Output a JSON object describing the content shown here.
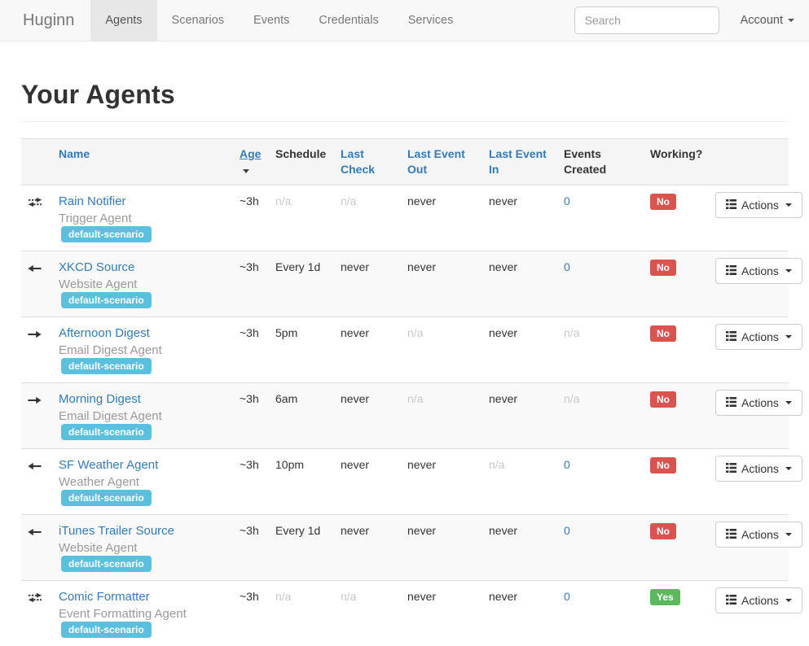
{
  "navbar": {
    "brand": "Huginn",
    "items": [
      {
        "label": "Agents",
        "active": true
      },
      {
        "label": "Scenarios",
        "active": false
      },
      {
        "label": "Events",
        "active": false
      },
      {
        "label": "Credentials",
        "active": false
      },
      {
        "label": "Services",
        "active": false
      }
    ],
    "search_placeholder": "Search",
    "account_label": "Account"
  },
  "page": {
    "title": "Your Agents"
  },
  "table": {
    "headers": [
      {
        "label": "",
        "style": "plain"
      },
      {
        "label": "Name",
        "style": "link"
      },
      {
        "label": "Age",
        "style": "link",
        "sorted": "desc"
      },
      {
        "label": "Schedule",
        "style": "plain"
      },
      {
        "label": "Last Check",
        "style": "link"
      },
      {
        "label": "Last Event Out",
        "style": "link"
      },
      {
        "label": "Last Event In",
        "style": "link"
      },
      {
        "label": "Events Created",
        "style": "plain"
      },
      {
        "label": "Working?",
        "style": "plain"
      },
      {
        "label": "",
        "style": "plain"
      }
    ],
    "actions_label": "Actions",
    "rows": [
      {
        "icon": "arrows-both-icon",
        "name": "Rain Notifier",
        "type": "Trigger Agent",
        "badge": "default-scenario",
        "age": "~3h",
        "schedule": "n/a",
        "last_check": "n/a",
        "last_event_out": "never",
        "last_event_in": "never",
        "events_created": "0",
        "working": "No"
      },
      {
        "icon": "arrow-left-icon",
        "name": "XKCD Source",
        "type": "Website Agent",
        "badge": "default-scenario",
        "age": "~3h",
        "schedule": "Every 1d",
        "last_check": "never",
        "last_event_out": "never",
        "last_event_in": "never",
        "events_created": "0",
        "working": "No"
      },
      {
        "icon": "arrow-right-icon",
        "name": "Afternoon Digest",
        "type": "Email Digest Agent",
        "badge": "default-scenario",
        "age": "~3h",
        "schedule": "5pm",
        "last_check": "never",
        "last_event_out": "n/a",
        "last_event_in": "never",
        "events_created": "n/a",
        "working": "No"
      },
      {
        "icon": "arrow-right-icon",
        "name": "Morning Digest",
        "type": "Email Digest Agent",
        "badge": "default-scenario",
        "age": "~3h",
        "schedule": "6am",
        "last_check": "never",
        "last_event_out": "n/a",
        "last_event_in": "never",
        "events_created": "n/a",
        "working": "No"
      },
      {
        "icon": "arrow-left-icon",
        "name": "SF Weather Agent",
        "type": "Weather Agent",
        "badge": "default-scenario",
        "age": "~3h",
        "schedule": "10pm",
        "last_check": "never",
        "last_event_out": "never",
        "last_event_in": "n/a",
        "events_created": "0",
        "working": "No"
      },
      {
        "icon": "arrow-left-icon",
        "name": "iTunes Trailer Source",
        "type": "Website Agent",
        "badge": "default-scenario",
        "age": "~3h",
        "schedule": "Every 1d",
        "last_check": "never",
        "last_event_out": "never",
        "last_event_in": "never",
        "events_created": "0",
        "working": "No"
      },
      {
        "icon": "arrows-both-icon",
        "name": "Comic Formatter",
        "type": "Event Formatting Agent",
        "badge": "default-scenario",
        "age": "~3h",
        "schedule": "n/a",
        "last_check": "n/a",
        "last_event_out": "never",
        "last_event_in": "never",
        "events_created": "0",
        "working": "Yes"
      }
    ]
  },
  "colors": {
    "link_blue": "#337ab7",
    "badge_info": "#5bc0de",
    "label_danger": "#d9534f",
    "label_success": "#5cb85c",
    "navbar_bg": "#f8f8f8",
    "active_tab_bg": "#e7e7e7"
  }
}
